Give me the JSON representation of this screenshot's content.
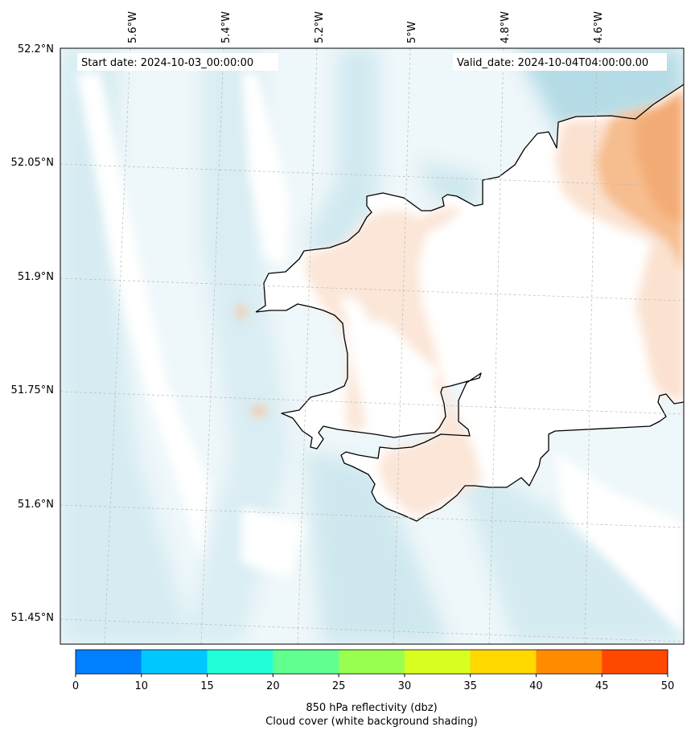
{
  "map": {
    "start_date_text": "Start date: 2024-10-03_00:00:00",
    "valid_date_text": "Valid_date: 2024-10-04T04:00:00.00",
    "lon_labels": [
      "5.6°W",
      "5.4°W",
      "5.2°W",
      "5°W",
      "4.8°W",
      "4.6°W"
    ],
    "lat_labels": [
      "52.2°N",
      "52.05°N",
      "51.9°N",
      "51.75°N",
      "51.6°N",
      "51.45°N"
    ],
    "colors": {
      "coastline": "#000000",
      "cloud_light": "#e3f2f6",
      "cloud_mid": "#cfe8ef",
      "cloud_dark": "#aed8e4",
      "land": "#ffffff",
      "precip_light": "#fbe4d4",
      "precip_mid": "#f8c9a5",
      "precip_dark": "#f3a96d",
      "grid": "#bbbbbb"
    }
  },
  "colorbar": {
    "ticks": [
      "0",
      "10",
      "15",
      "20",
      "25",
      "30",
      "35",
      "40",
      "45",
      "50"
    ],
    "colors": [
      "#0080ff",
      "#00c8ff",
      "#20ffd8",
      "#60ff90",
      "#98ff50",
      "#d8ff20",
      "#ffd800",
      "#ff8c00",
      "#ff4800"
    ],
    "title_line1": "850 hPa reflectivity (dbz)",
    "title_line2": "Cloud cover (white background shading)"
  }
}
